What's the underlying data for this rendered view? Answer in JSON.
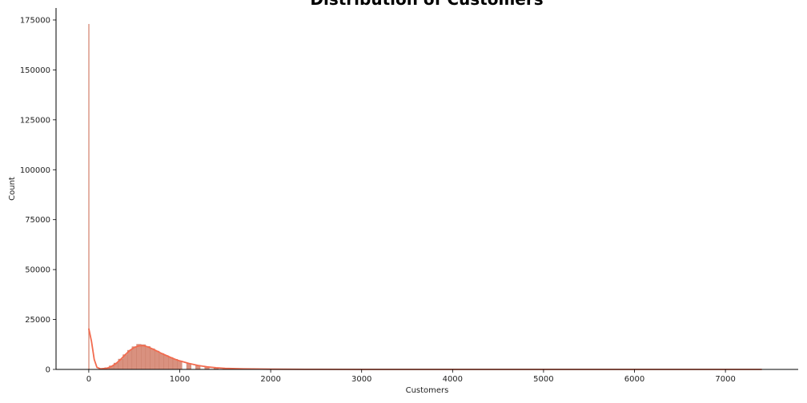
{
  "chart_data": {
    "type": "histogram",
    "title": "Distribution of Customers",
    "xlabel": "Customers",
    "ylabel": "Count",
    "xlim": [
      -360,
      7800
    ],
    "ylim": [
      0,
      181000
    ],
    "x_ticks": [
      0,
      1000,
      2000,
      3000,
      4000,
      5000,
      6000,
      7000
    ],
    "y_ticks": [
      0,
      25000,
      50000,
      75000,
      100000,
      125000,
      150000,
      175000
    ],
    "grid": false,
    "bar_color": "#d9917f",
    "kde_color": "#f26b4f",
    "zero_bin": {
      "x": 0,
      "count": 173000
    },
    "bins": [
      {
        "x": 150,
        "count": 400
      },
      {
        "x": 200,
        "count": 900
      },
      {
        "x": 250,
        "count": 1800
      },
      {
        "x": 300,
        "count": 3200
      },
      {
        "x": 350,
        "count": 5200
      },
      {
        "x": 400,
        "count": 7400
      },
      {
        "x": 450,
        "count": 9600
      },
      {
        "x": 500,
        "count": 11400
      },
      {
        "x": 550,
        "count": 12600
      },
      {
        "x": 600,
        "count": 12400
      },
      {
        "x": 650,
        "count": 11500
      },
      {
        "x": 700,
        "count": 10400
      },
      {
        "x": 750,
        "count": 9200
      },
      {
        "x": 800,
        "count": 8000
      },
      {
        "x": 850,
        "count": 7000
      },
      {
        "x": 900,
        "count": 6000
      },
      {
        "x": 950,
        "count": 5100
      },
      {
        "x": 1000,
        "count": 4300
      },
      {
        "x": 1100,
        "count": 3000
      },
      {
        "x": 1200,
        "count": 2000
      },
      {
        "x": 1300,
        "count": 1300
      },
      {
        "x": 1400,
        "count": 850
      },
      {
        "x": 1500,
        "count": 550
      },
      {
        "x": 1700,
        "count": 300
      },
      {
        "x": 2000,
        "count": 120
      },
      {
        "x": 2500,
        "count": 40
      },
      {
        "x": 3000,
        "count": 15
      }
    ],
    "kde": [
      [
        0,
        20500
      ],
      [
        30,
        14000
      ],
      [
        60,
        5000
      ],
      [
        90,
        1000
      ],
      [
        130,
        300
      ],
      [
        200,
        600
      ],
      [
        250,
        1500
      ],
      [
        300,
        3000
      ],
      [
        350,
        5000
      ],
      [
        400,
        7300
      ],
      [
        450,
        9500
      ],
      [
        500,
        11000
      ],
      [
        550,
        11800
      ],
      [
        600,
        11900
      ],
      [
        650,
        11300
      ],
      [
        700,
        10300
      ],
      [
        750,
        9200
      ],
      [
        800,
        8000
      ],
      [
        850,
        7000
      ],
      [
        900,
        6000
      ],
      [
        950,
        5100
      ],
      [
        1000,
        4300
      ],
      [
        1100,
        3000
      ],
      [
        1200,
        2000
      ],
      [
        1300,
        1300
      ],
      [
        1400,
        850
      ],
      [
        1500,
        550
      ],
      [
        1700,
        280
      ],
      [
        2000,
        120
      ],
      [
        2500,
        50
      ],
      [
        3000,
        20
      ],
      [
        4000,
        8
      ],
      [
        5000,
        4
      ],
      [
        6000,
        2
      ],
      [
        7000,
        1
      ],
      [
        7400,
        0
      ]
    ]
  }
}
